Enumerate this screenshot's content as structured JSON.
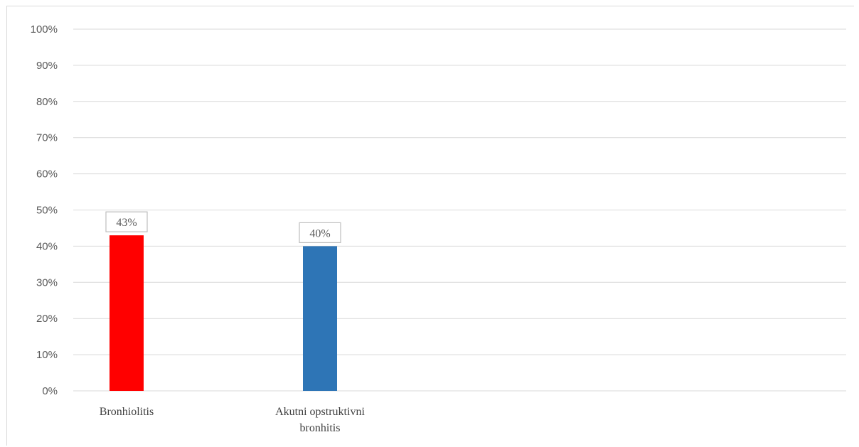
{
  "chart_data": {
    "type": "bar",
    "categories": [
      "Bronhiolitis",
      "Akutni opstruktivni bronhitis"
    ],
    "category_lines": [
      [
        "Bronhiolitis"
      ],
      [
        "Akutni opstruktivni",
        "bronhitis"
      ]
    ],
    "values": [
      43,
      40
    ],
    "data_labels": [
      "43%",
      "40%"
    ],
    "colors": [
      "#ff0000",
      "#2e75b6"
    ],
    "ylim": [
      0,
      100
    ],
    "yticks": [
      "0%",
      "10%",
      "20%",
      "30%",
      "40%",
      "50%",
      "60%",
      "70%",
      "80%",
      "90%",
      "100%"
    ],
    "grid": true,
    "legend": "none",
    "title": "",
    "xlabel": "",
    "ylabel": ""
  }
}
